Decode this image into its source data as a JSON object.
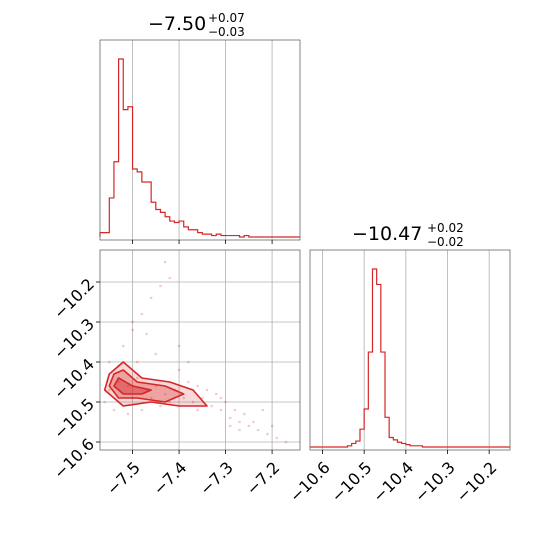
{
  "chart_data": [
    {
      "type": "histogram",
      "panel": "top-left",
      "title": {
        "value": "−7.50",
        "plus": "+0.07",
        "minus": "−0.03"
      },
      "xlim": [
        -7.57,
        -7.14
      ],
      "grid": true,
      "bin_edges": [
        -7.57,
        -7.56,
        -7.55,
        -7.54,
        -7.53,
        -7.52,
        -7.51,
        -7.5,
        -7.49,
        -7.48,
        -7.47,
        -7.46,
        -7.45,
        -7.44,
        -7.43,
        -7.42,
        -7.41,
        -7.4,
        -7.39,
        -7.38,
        -7.37,
        -7.36,
        -7.35,
        -7.34,
        -7.33,
        -7.32,
        -7.31,
        -7.3,
        -7.29,
        -7.28,
        -7.27,
        -7.26,
        -7.25,
        -7.24,
        -7.23,
        -7.22
      ],
      "counts": [
        3,
        3,
        27,
        52,
        123,
        88,
        90,
        47,
        45,
        38,
        38,
        24,
        19,
        17,
        14,
        11,
        10,
        11,
        7,
        5,
        5,
        3,
        2,
        2,
        1,
        2,
        1,
        1,
        1,
        1,
        0,
        1,
        0,
        0,
        0
      ]
    },
    {
      "type": "histogram",
      "panel": "bottom-right",
      "title": {
        "value": "−10.47",
        "plus": "+0.02",
        "minus": "−0.02"
      },
      "xlim": [
        -10.63,
        -10.15
      ],
      "x_ticks": [
        "−10.6",
        "−10.5",
        "−10.4",
        "−10.3",
        "−10.2"
      ],
      "grid": true,
      "bin_edges": [
        -10.54,
        -10.53,
        -10.52,
        -10.51,
        -10.5,
        -10.49,
        -10.48,
        -10.47,
        -10.46,
        -10.45,
        -10.44,
        -10.43,
        -10.42,
        -10.41,
        -10.4,
        -10.39,
        -10.38,
        -10.37,
        -10.36,
        -10.35
      ],
      "counts": [
        1,
        3,
        5,
        15,
        32,
        80,
        150,
        137,
        80,
        25,
        8,
        6,
        4,
        3,
        2,
        1,
        1,
        1,
        0
      ]
    },
    {
      "type": "scatter",
      "panel": "bottom-left",
      "xlim": [
        -7.57,
        -7.14
      ],
      "ylim": [
        -10.62,
        -10.12
      ],
      "x_ticks": [
        "−7.5",
        "−7.4",
        "−7.3",
        "−7.2"
      ],
      "y_ticks": [
        "−10.6",
        "−10.5",
        "−10.4",
        "−10.3",
        "−10.2"
      ],
      "grid": true,
      "color": "#d62728",
      "contours": [
        [
          [
            -7.55,
            -10.43
          ],
          [
            -7.52,
            -10.4
          ],
          [
            -7.48,
            -10.44
          ],
          [
            -7.42,
            -10.45
          ],
          [
            -7.37,
            -10.47
          ],
          [
            -7.34,
            -10.51
          ],
          [
            -7.4,
            -10.51
          ],
          [
            -7.46,
            -10.5
          ],
          [
            -7.52,
            -10.51
          ],
          [
            -7.56,
            -10.47
          ]
        ],
        [
          [
            -7.54,
            -10.43
          ],
          [
            -7.52,
            -10.42
          ],
          [
            -7.49,
            -10.45
          ],
          [
            -7.43,
            -10.46
          ],
          [
            -7.39,
            -10.48
          ],
          [
            -7.43,
            -10.5
          ],
          [
            -7.49,
            -10.49
          ],
          [
            -7.53,
            -10.49
          ],
          [
            -7.55,
            -10.46
          ]
        ],
        [
          [
            -7.53,
            -10.44
          ],
          [
            -7.5,
            -10.46
          ],
          [
            -7.46,
            -10.47
          ],
          [
            -7.48,
            -10.48
          ],
          [
            -7.52,
            -10.48
          ],
          [
            -7.54,
            -10.46
          ]
        ]
      ],
      "points": [
        [
          -7.53,
          -10.45
        ],
        [
          -7.51,
          -10.46
        ],
        [
          -7.49,
          -10.44
        ],
        [
          -7.47,
          -10.47
        ],
        [
          -7.45,
          -10.46
        ],
        [
          -7.43,
          -10.48
        ],
        [
          -7.41,
          -10.47
        ],
        [
          -7.39,
          -10.49
        ],
        [
          -7.37,
          -10.5
        ],
        [
          -7.35,
          -10.49
        ],
        [
          -7.33,
          -10.51
        ],
        [
          -7.31,
          -10.52
        ],
        [
          -7.29,
          -10.54
        ],
        [
          -7.27,
          -10.55
        ],
        [
          -7.25,
          -10.56
        ],
        [
          -7.23,
          -10.57
        ],
        [
          -7.21,
          -10.58
        ],
        [
          -7.19,
          -10.59
        ],
        [
          -7.17,
          -10.6
        ],
        [
          -7.55,
          -10.4
        ],
        [
          -7.52,
          -10.36
        ],
        [
          -7.5,
          -10.32
        ],
        [
          -7.48,
          -10.28
        ],
        [
          -7.46,
          -10.24
        ],
        [
          -7.44,
          -10.21
        ],
        [
          -7.42,
          -10.19
        ],
        [
          -7.5,
          -10.3
        ],
        [
          -7.47,
          -10.33
        ],
        [
          -7.45,
          -10.38
        ],
        [
          -7.4,
          -10.42
        ],
        [
          -7.36,
          -10.46
        ],
        [
          -7.32,
          -10.48
        ],
        [
          -7.3,
          -10.5
        ],
        [
          -7.28,
          -10.52
        ],
        [
          -7.26,
          -10.53
        ],
        [
          -7.24,
          -10.55
        ],
        [
          -7.56,
          -10.5
        ],
        [
          -7.54,
          -10.52
        ],
        [
          -7.51,
          -10.53
        ],
        [
          -7.48,
          -10.52
        ],
        [
          -7.44,
          -10.51
        ],
        [
          -7.38,
          -10.45
        ],
        [
          -7.34,
          -10.47
        ],
        [
          -7.55,
          -10.47
        ],
        [
          -7.5,
          -10.49
        ],
        [
          -7.46,
          -10.49
        ],
        [
          -7.42,
          -10.5
        ],
        [
          -7.36,
          -10.52
        ],
        [
          -7.49,
          -10.4
        ],
        [
          -7.53,
          -10.41
        ],
        [
          -7.29,
          -10.56
        ],
        [
          -7.27,
          -10.57
        ],
        [
          -7.2,
          -10.56
        ],
        [
          -7.22,
          -10.52
        ],
        [
          -7.31,
          -10.49
        ],
        [
          -7.4,
          -10.36
        ],
        [
          -7.38,
          -10.4
        ],
        [
          -7.43,
          -10.15
        ]
      ]
    }
  ]
}
